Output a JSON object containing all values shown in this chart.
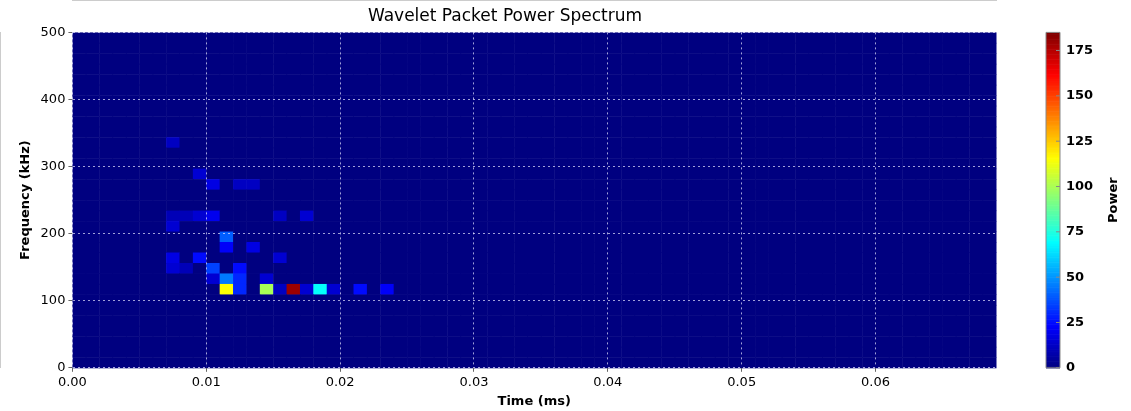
{
  "chart_data": {
    "type": "heatmap",
    "title": "Wavelet Packet Power Spectrum",
    "xlabel": "Time (ms)",
    "ylabel": "Frequency (kHz)",
    "clabel": "Power",
    "cells": [
      [
        0,
        0,
        0,
        0,
        0,
        0,
        0,
        0,
        0,
        0,
        0,
        0,
        0,
        0,
        0,
        0,
        0,
        0,
        0,
        0,
        0,
        0,
        0,
        0,
        0,
        0,
        0,
        0,
        0,
        0,
        0,
        0,
        0,
        0,
        0,
        0,
        0,
        0,
        0,
        0,
        0,
        0,
        0,
        0,
        0,
        0,
        0,
        0,
        0,
        0,
        0,
        0,
        0,
        0,
        0,
        0,
        0,
        0,
        0,
        0,
        0,
        0,
        0,
        0,
        0,
        0,
        0,
        0,
        0
      ],
      [
        0,
        0,
        0,
        0,
        0,
        0,
        0,
        0,
        0,
        0,
        0,
        0,
        0,
        0,
        0,
        0,
        0,
        0,
        0,
        0,
        0,
        0,
        0,
        0,
        0,
        0,
        0,
        0,
        0,
        0,
        0,
        0,
        0,
        0,
        0,
        0,
        0,
        0,
        0,
        0,
        0,
        0,
        0,
        0,
        0,
        0,
        0,
        0,
        0,
        0,
        0,
        0,
        0,
        0,
        0,
        0,
        0,
        0,
        0,
        0,
        0,
        0,
        0,
        0,
        0,
        0,
        0,
        0,
        0
      ],
      [
        0,
        0,
        0,
        0,
        0,
        0,
        0,
        0,
        0,
        0,
        0,
        0,
        0,
        0,
        0,
        0,
        0,
        0,
        0,
        0,
        0,
        0,
        0,
        0,
        0,
        0,
        0,
        0,
        0,
        0,
        0,
        0,
        0,
        0,
        0,
        0,
        0,
        0,
        0,
        0,
        0,
        0,
        0,
        0,
        0,
        0,
        0,
        0,
        0,
        0,
        0,
        0,
        0,
        0,
        0,
        0,
        0,
        0,
        0,
        0,
        0,
        0,
        0,
        0,
        0,
        0,
        0,
        0,
        0
      ],
      [
        0,
        0,
        0,
        0,
        0,
        0,
        0,
        0,
        0,
        0,
        0,
        0,
        0,
        0,
        0,
        0,
        0,
        0,
        0,
        0,
        0,
        0,
        0,
        0,
        0,
        0,
        0,
        0,
        0,
        0,
        0,
        0,
        0,
        0,
        0,
        0,
        0,
        0,
        0,
        0,
        0,
        0,
        0,
        0,
        0,
        0,
        0,
        0,
        0,
        0,
        0,
        0,
        0,
        0,
        0,
        0,
        0,
        0,
        0,
        0,
        0,
        0,
        0,
        0,
        0,
        0,
        0,
        0,
        0
      ],
      [
        0,
        0,
        0,
        0,
        0,
        0,
        0,
        0,
        0,
        0,
        0,
        0,
        0,
        0,
        0,
        0,
        0,
        0,
        0,
        0,
        0,
        0,
        0,
        0,
        0,
        0,
        0,
        0,
        0,
        0,
        0,
        0,
        0,
        0,
        0,
        0,
        0,
        0,
        0,
        0,
        0,
        0,
        0,
        0,
        0,
        0,
        0,
        0,
        0,
        0,
        0,
        0,
        0,
        0,
        0,
        0,
        0,
        0,
        0,
        0,
        0,
        0,
        0,
        0,
        0,
        0,
        0,
        0,
        0
      ],
      [
        0,
        0,
        0,
        0,
        0,
        0,
        0,
        0,
        0,
        0,
        0,
        0,
        0,
        0,
        0,
        0,
        0,
        0,
        0,
        0,
        0,
        0,
        0,
        0,
        0,
        0,
        0,
        0,
        0,
        0,
        0,
        0,
        0,
        0,
        0,
        0,
        0,
        0,
        0,
        0,
        0,
        0,
        0,
        0,
        0,
        0,
        0,
        0,
        0,
        0,
        0,
        0,
        0,
        0,
        0,
        0,
        0,
        0,
        0,
        0,
        0,
        0,
        0,
        0,
        0,
        0,
        0,
        0,
        0
      ],
      [
        0,
        0,
        0,
        0,
        0,
        0,
        0,
        0,
        0,
        0,
        0,
        0,
        0,
        0,
        0,
        0,
        0,
        0,
        0,
        0,
        0,
        0,
        0,
        0,
        0,
        0,
        0,
        0,
        0,
        0,
        0,
        0,
        0,
        0,
        0,
        0,
        0,
        0,
        0,
        0,
        0,
        0,
        0,
        0,
        0,
        0,
        0,
        0,
        0,
        0,
        0,
        0,
        0,
        0,
        0,
        0,
        0,
        0,
        0,
        0,
        0,
        0,
        0,
        0,
        0,
        0,
        0,
        0,
        0
      ],
      [
        0,
        0,
        0,
        0,
        0,
        0,
        0,
        0,
        0,
        0,
        0,
        0,
        0,
        0,
        0,
        0,
        0,
        0,
        0,
        0,
        0,
        0,
        0,
        0,
        0,
        0,
        0,
        0,
        0,
        0,
        0,
        0,
        0,
        0,
        0,
        0,
        0,
        0,
        0,
        0,
        0,
        0,
        0,
        0,
        0,
        0,
        0,
        0,
        0,
        0,
        0,
        0,
        0,
        0,
        0,
        0,
        0,
        0,
        0,
        0,
        0,
        0,
        0,
        0,
        0,
        0,
        0,
        0,
        0
      ],
      [
        0,
        0,
        0,
        0,
        0,
        0,
        0,
        0,
        0,
        0,
        0,
        0,
        0,
        0,
        0,
        0,
        0,
        0,
        0,
        0,
        0,
        0,
        0,
        0,
        0,
        0,
        0,
        0,
        0,
        0,
        0,
        0,
        0,
        0,
        0,
        0,
        0,
        0,
        0,
        0,
        0,
        0,
        0,
        0,
        0,
        0,
        0,
        0,
        0,
        0,
        0,
        0,
        0,
        0,
        0,
        0,
        0,
        0,
        0,
        0,
        0,
        0,
        0,
        0,
        0,
        0,
        0,
        0,
        0
      ],
      [
        0,
        0,
        0,
        0,
        0,
        0,
        0,
        0,
        0,
        0,
        0,
        0,
        0,
        0,
        0,
        0,
        0,
        0,
        0,
        0,
        0,
        0,
        0,
        0,
        0,
        0,
        0,
        0,
        0,
        0,
        0,
        0,
        0,
        0,
        0,
        0,
        0,
        0,
        0,
        0,
        0,
        0,
        0,
        0,
        0,
        0,
        0,
        0,
        0,
        0,
        0,
        0,
        0,
        0,
        0,
        0,
        0,
        0,
        0,
        0,
        0,
        0,
        0,
        0,
        0,
        0,
        0,
        0,
        0
      ],
      [
        0,
        0,
        0,
        0,
        0,
        0,
        0,
        12,
        0,
        0,
        0,
        0,
        0,
        0,
        0,
        0,
        0,
        0,
        0,
        0,
        0,
        0,
        0,
        0,
        0,
        0,
        0,
        0,
        0,
        0,
        0,
        0,
        0,
        0,
        0,
        0,
        0,
        0,
        0,
        0,
        0,
        0,
        0,
        0,
        0,
        0,
        0,
        0,
        0,
        0,
        0,
        0,
        0,
        0,
        0,
        0,
        0,
        0,
        0,
        0,
        0,
        0,
        0,
        0,
        0,
        0,
        0,
        0,
        0
      ],
      [
        0,
        0,
        0,
        0,
        0,
        0,
        0,
        0,
        0,
        0,
        0,
        0,
        0,
        0,
        0,
        0,
        0,
        0,
        0,
        0,
        0,
        0,
        0,
        0,
        0,
        0,
        0,
        0,
        0,
        0,
        0,
        0,
        0,
        0,
        0,
        0,
        0,
        0,
        0,
        0,
        0,
        0,
        0,
        0,
        0,
        0,
        0,
        0,
        0,
        0,
        0,
        0,
        0,
        0,
        0,
        0,
        0,
        0,
        0,
        0,
        0,
        0,
        0,
        0,
        0,
        0,
        0,
        0,
        0
      ],
      [
        0,
        0,
        0,
        0,
        0,
        0,
        0,
        0,
        0,
        0,
        0,
        0,
        0,
        0,
        0,
        0,
        0,
        0,
        0,
        0,
        0,
        0,
        0,
        0,
        0,
        0,
        0,
        0,
        0,
        0,
        0,
        0,
        0,
        0,
        0,
        0,
        0,
        0,
        0,
        0,
        0,
        0,
        0,
        0,
        0,
        0,
        0,
        0,
        0,
        0,
        0,
        0,
        0,
        0,
        0,
        0,
        0,
        0,
        0,
        0,
        0,
        0,
        0,
        0,
        0,
        0,
        0,
        0,
        0
      ],
      [
        0,
        0,
        0,
        0,
        0,
        0,
        0,
        0,
        0,
        15,
        0,
        0,
        0,
        0,
        0,
        0,
        0,
        0,
        0,
        0,
        0,
        0,
        0,
        0,
        0,
        0,
        0,
        0,
        0,
        0,
        0,
        0,
        0,
        0,
        0,
        0,
        0,
        0,
        0,
        0,
        0,
        0,
        0,
        0,
        0,
        0,
        0,
        0,
        0,
        0,
        0,
        0,
        0,
        0,
        0,
        0,
        0,
        0,
        0,
        0,
        0,
        0,
        0,
        0,
        0,
        0,
        0,
        0,
        0
      ],
      [
        0,
        0,
        0,
        0,
        0,
        0,
        0,
        0,
        0,
        0,
        18,
        0,
        12,
        12,
        0,
        0,
        0,
        0,
        0,
        0,
        0,
        0,
        0,
        0,
        0,
        0,
        0,
        0,
        0,
        0,
        0,
        0,
        0,
        0,
        0,
        0,
        0,
        0,
        0,
        0,
        0,
        0,
        0,
        0,
        0,
        0,
        0,
        0,
        0,
        0,
        0,
        0,
        0,
        0,
        0,
        0,
        0,
        0,
        0,
        0,
        0,
        0,
        0,
        0,
        0,
        0,
        0,
        0,
        0
      ],
      [
        0,
        0,
        0,
        0,
        0,
        0,
        0,
        0,
        0,
        0,
        0,
        0,
        0,
        0,
        0,
        0,
        0,
        0,
        0,
        0,
        0,
        0,
        0,
        0,
        0,
        0,
        0,
        0,
        0,
        0,
        0,
        0,
        0,
        0,
        0,
        0,
        0,
        0,
        0,
        0,
        0,
        0,
        0,
        0,
        0,
        0,
        0,
        0,
        0,
        0,
        0,
        0,
        0,
        0,
        0,
        0,
        0,
        0,
        0,
        0,
        0,
        0,
        0,
        0,
        0,
        0,
        0,
        0,
        0
      ],
      [
        0,
        0,
        0,
        0,
        0,
        0,
        0,
        0,
        0,
        0,
        0,
        0,
        0,
        0,
        0,
        0,
        0,
        0,
        0,
        0,
        0,
        0,
        0,
        0,
        0,
        0,
        0,
        0,
        0,
        0,
        0,
        0,
        0,
        0,
        0,
        0,
        0,
        0,
        0,
        0,
        0,
        0,
        0,
        0,
        0,
        0,
        0,
        0,
        0,
        0,
        0,
        0,
        0,
        0,
        0,
        0,
        0,
        0,
        0,
        0,
        0,
        0,
        0,
        0,
        0,
        0,
        0,
        0,
        0
      ],
      [
        0,
        0,
        0,
        0,
        0,
        0,
        0,
        10,
        10,
        15,
        20,
        0,
        0,
        0,
        0,
        12,
        0,
        15,
        0,
        0,
        0,
        0,
        0,
        0,
        0,
        0,
        0,
        0,
        0,
        0,
        0,
        0,
        0,
        0,
        0,
        0,
        0,
        0,
        0,
        0,
        0,
        0,
        0,
        0,
        0,
        0,
        0,
        0,
        0,
        0,
        0,
        0,
        0,
        0,
        0,
        0,
        0,
        0,
        0,
        0,
        0,
        0,
        0,
        0,
        0,
        0,
        0,
        0,
        0
      ],
      [
        0,
        0,
        0,
        0,
        0,
        0,
        0,
        15,
        0,
        0,
        0,
        0,
        0,
        0,
        0,
        0,
        0,
        0,
        0,
        0,
        0,
        0,
        0,
        0,
        0,
        0,
        0,
        0,
        0,
        0,
        0,
        0,
        0,
        0,
        0,
        0,
        0,
        0,
        0,
        0,
        0,
        0,
        0,
        0,
        0,
        0,
        0,
        0,
        0,
        0,
        0,
        0,
        0,
        0,
        0,
        0,
        0,
        0,
        0,
        0,
        0,
        0,
        0,
        0,
        0,
        0,
        0,
        0,
        0
      ],
      [
        0,
        0,
        0,
        0,
        0,
        0,
        0,
        0,
        0,
        0,
        0,
        40,
        0,
        0,
        0,
        0,
        0,
        0,
        0,
        0,
        0,
        0,
        0,
        0,
        0,
        0,
        0,
        0,
        0,
        0,
        0,
        0,
        0,
        0,
        0,
        0,
        0,
        0,
        0,
        0,
        0,
        0,
        0,
        0,
        0,
        0,
        0,
        0,
        0,
        0,
        0,
        0,
        0,
        0,
        0,
        0,
        0,
        0,
        0,
        0,
        0,
        0,
        0,
        0,
        0,
        0,
        0,
        0,
        0
      ],
      [
        0,
        0,
        0,
        0,
        0,
        0,
        0,
        0,
        0,
        0,
        0,
        22,
        0,
        18,
        0,
        0,
        0,
        0,
        0,
        0,
        0,
        0,
        0,
        0,
        0,
        0,
        0,
        0,
        0,
        0,
        0,
        0,
        0,
        0,
        0,
        0,
        0,
        0,
        0,
        0,
        0,
        0,
        0,
        0,
        0,
        0,
        0,
        0,
        0,
        0,
        0,
        0,
        0,
        0,
        0,
        0,
        0,
        0,
        0,
        0,
        0,
        0,
        0,
        0,
        0,
        0,
        0,
        0,
        0
      ],
      [
        0,
        0,
        0,
        0,
        0,
        0,
        0,
        18,
        0,
        25,
        0,
        0,
        0,
        0,
        0,
        15,
        0,
        0,
        0,
        0,
        0,
        0,
        0,
        0,
        0,
        0,
        0,
        0,
        0,
        0,
        0,
        0,
        0,
        0,
        0,
        0,
        0,
        0,
        0,
        0,
        0,
        0,
        0,
        0,
        0,
        0,
        0,
        0,
        0,
        0,
        0,
        0,
        0,
        0,
        0,
        0,
        0,
        0,
        0,
        0,
        0,
        0,
        0,
        0,
        0,
        0,
        0,
        0,
        0
      ],
      [
        0,
        0,
        0,
        0,
        0,
        0,
        0,
        15,
        10,
        0,
        35,
        0,
        25,
        0,
        0,
        0,
        0,
        0,
        0,
        0,
        0,
        0,
        0,
        0,
        0,
        0,
        0,
        0,
        0,
        0,
        0,
        0,
        0,
        0,
        0,
        0,
        0,
        0,
        0,
        0,
        0,
        0,
        0,
        0,
        0,
        0,
        0,
        0,
        0,
        0,
        0,
        0,
        0,
        0,
        0,
        0,
        0,
        0,
        0,
        0,
        0,
        0,
        0,
        0,
        0,
        0,
        0,
        0,
        0
      ],
      [
        0,
        0,
        0,
        0,
        0,
        0,
        0,
        0,
        0,
        0,
        15,
        45,
        30,
        0,
        15,
        0,
        0,
        0,
        0,
        0,
        0,
        0,
        0,
        0,
        0,
        0,
        0,
        0,
        0,
        0,
        0,
        0,
        0,
        0,
        0,
        0,
        0,
        0,
        0,
        0,
        0,
        0,
        0,
        0,
        0,
        0,
        0,
        0,
        0,
        0,
        0,
        0,
        0,
        0,
        0,
        0,
        0,
        0,
        0,
        0,
        0,
        0,
        0,
        0,
        0,
        0,
        0,
        0,
        0
      ],
      [
        0,
        0,
        0,
        0,
        0,
        0,
        0,
        0,
        0,
        0,
        0,
        115,
        30,
        0,
        100,
        12,
        180,
        15,
        70,
        15,
        0,
        25,
        0,
        22,
        0,
        0,
        0,
        0,
        0,
        0,
        0,
        0,
        0,
        0,
        0,
        0,
        0,
        0,
        0,
        0,
        0,
        0,
        0,
        0,
        0,
        0,
        0,
        0,
        0,
        0,
        0,
        0,
        0,
        0,
        0,
        0,
        0,
        0,
        0,
        0,
        0,
        0,
        0,
        0,
        0,
        0,
        0,
        0,
        0
      ],
      [
        0,
        0,
        0,
        0,
        0,
        0,
        0,
        0,
        0,
        0,
        0,
        0,
        0,
        0,
        0,
        0,
        0,
        0,
        0,
        0,
        0,
        0,
        0,
        0,
        0,
        0,
        0,
        0,
        0,
        0,
        0,
        0,
        0,
        0,
        0,
        0,
        0,
        0,
        0,
        0,
        0,
        0,
        0,
        0,
        0,
        0,
        0,
        0,
        0,
        0,
        0,
        0,
        0,
        0,
        0,
        0,
        0,
        0,
        0,
        0,
        0,
        0,
        0,
        0,
        0,
        0,
        0,
        0,
        0
      ],
      [
        0,
        0,
        0,
        0,
        0,
        0,
        0,
        0,
        0,
        0,
        0,
        0,
        0,
        0,
        0,
        0,
        0,
        0,
        0,
        0,
        0,
        0,
        0,
        0,
        0,
        0,
        0,
        0,
        0,
        0,
        0,
        0,
        0,
        0,
        0,
        0,
        0,
        0,
        0,
        0,
        0,
        0,
        0,
        0,
        0,
        0,
        0,
        0,
        0,
        0,
        0,
        0,
        0,
        0,
        0,
        0,
        0,
        0,
        0,
        0,
        0,
        0,
        0,
        0,
        0,
        0,
        0,
        0,
        0
      ],
      [
        0,
        0,
        0,
        0,
        0,
        0,
        0,
        0,
        0,
        0,
        0,
        0,
        0,
        0,
        0,
        0,
        0,
        0,
        0,
        0,
        0,
        0,
        0,
        0,
        0,
        0,
        0,
        0,
        0,
        0,
        0,
        0,
        0,
        0,
        0,
        0,
        0,
        0,
        0,
        0,
        0,
        0,
        0,
        0,
        0,
        0,
        0,
        0,
        0,
        0,
        0,
        0,
        0,
        0,
        0,
        0,
        0,
        0,
        0,
        0,
        0,
        0,
        0,
        0,
        0,
        0,
        0,
        0,
        0
      ],
      [
        0,
        0,
        0,
        0,
        0,
        0,
        0,
        0,
        0,
        0,
        0,
        0,
        0,
        0,
        0,
        0,
        0,
        0,
        0,
        0,
        0,
        0,
        0,
        0,
        0,
        0,
        0,
        0,
        0,
        0,
        0,
        0,
        0,
        0,
        0,
        0,
        0,
        0,
        0,
        0,
        0,
        0,
        0,
        0,
        0,
        0,
        0,
        0,
        0,
        0,
        0,
        0,
        0,
        0,
        0,
        0,
        0,
        0,
        0,
        0,
        0,
        0,
        0,
        0,
        0,
        0,
        0,
        0,
        0
      ],
      [
        0,
        0,
        0,
        0,
        0,
        0,
        0,
        0,
        0,
        0,
        0,
        0,
        0,
        0,
        0,
        0,
        0,
        0,
        0,
        0,
        0,
        0,
        0,
        0,
        0,
        0,
        0,
        0,
        0,
        0,
        0,
        0,
        0,
        0,
        0,
        0,
        0,
        0,
        0,
        0,
        0,
        0,
        0,
        0,
        0,
        0,
        0,
        0,
        0,
        0,
        0,
        0,
        0,
        0,
        0,
        0,
        0,
        0,
        0,
        0,
        0,
        0,
        0,
        0,
        0,
        0,
        0,
        0,
        0
      ],
      [
        0,
        0,
        0,
        0,
        0,
        0,
        0,
        0,
        0,
        0,
        0,
        0,
        0,
        0,
        0,
        0,
        0,
        0,
        0,
        0,
        0,
        0,
        0,
        0,
        0,
        0,
        0,
        0,
        0,
        0,
        0,
        0,
        0,
        0,
        0,
        0,
        0,
        0,
        0,
        0,
        0,
        0,
        0,
        0,
        0,
        0,
        0,
        0,
        0,
        0,
        0,
        0,
        0,
        0,
        0,
        0,
        0,
        0,
        0,
        0,
        0,
        0,
        0,
        0,
        0,
        0,
        0,
        0,
        0
      ],
      [
        0,
        0,
        0,
        0,
        0,
        0,
        0,
        0,
        0,
        0,
        0,
        0,
        0,
        0,
        0,
        0,
        0,
        0,
        0,
        0,
        0,
        0,
        0,
        0,
        0,
        0,
        0,
        0,
        0,
        0,
        0,
        0,
        0,
        0,
        0,
        0,
        0,
        0,
        0,
        0,
        0,
        0,
        0,
        0,
        0,
        0,
        0,
        0,
        0,
        0,
        0,
        0,
        0,
        0,
        0,
        0,
        0,
        0,
        0,
        0,
        0,
        0,
        0,
        0,
        0,
        0,
        0,
        0,
        0
      ]
    ],
    "xlim": [
      0,
      0.069
    ],
    "xticks": [
      {
        "value": 0,
        "label": "0.00"
      },
      {
        "value": 0.01,
        "label": "0.01"
      },
      {
        "value": 0.02,
        "label": "0.02"
      },
      {
        "value": 0.03,
        "label": "0.03"
      },
      {
        "value": 0.04,
        "label": "0.04"
      },
      {
        "value": 0.05,
        "label": "0.05"
      },
      {
        "value": 0.06,
        "label": "0.06"
      }
    ],
    "ylim": [
      0,
      500
    ],
    "yticks": [
      0,
      100,
      200,
      300,
      400,
      500
    ],
    "clim": [
      0,
      185
    ],
    "cticks": [
      0,
      25,
      50,
      75,
      100,
      125,
      150,
      175
    ],
    "grid": true
  }
}
